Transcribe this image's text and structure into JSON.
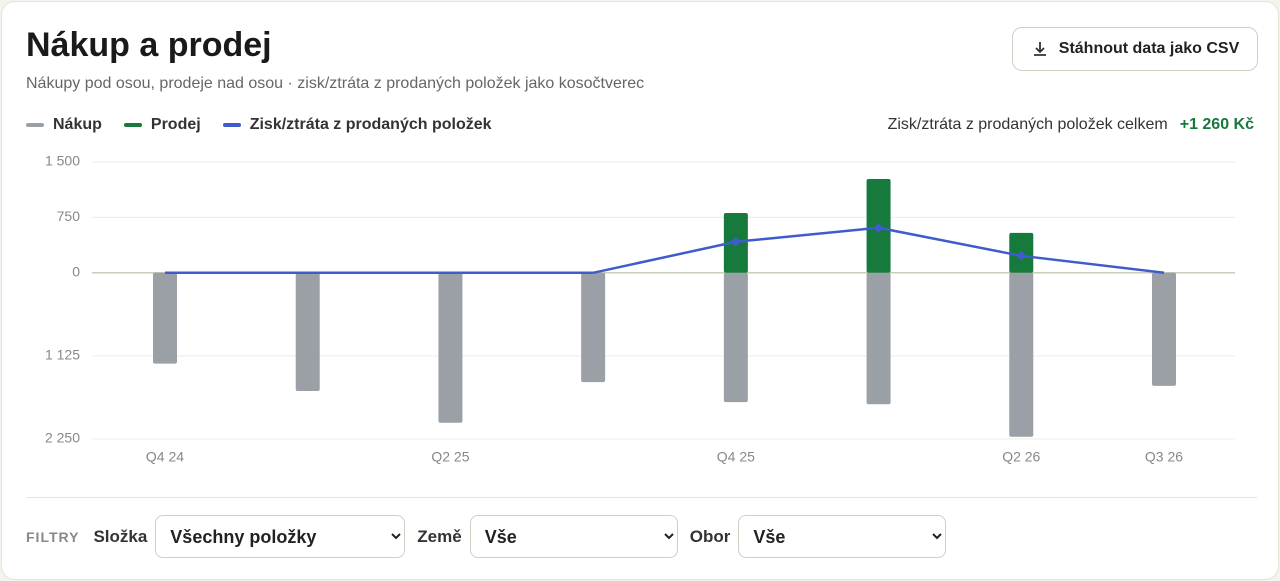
{
  "chart_data": {
    "type": "bar",
    "title": "Nákup a prodej",
    "subtitle": "Nákupy pod osou, prodeje nad osou · zisk/ztráta z prodaných položek jako kosočtverec",
    "summary": {
      "label": "Zisk/ztráta z prodaných položek celkem",
      "value_label": "+1 260 Kč"
    },
    "categories": [
      "Q4 24",
      null,
      "Q2 25",
      null,
      "Q4 25",
      null,
      "Q2 26",
      "Q3 26"
    ],
    "series": [
      {
        "name": "Nákup",
        "color": "#9aa0a6",
        "values": [
          -1230,
          -1600,
          -2030,
          -1480,
          -1750,
          -1780,
          -2220,
          -1530
        ]
      },
      {
        "name": "Prodej",
        "color": "#157a3c",
        "values": [
          0,
          0,
          0,
          0,
          810,
          1270,
          540,
          0
        ]
      },
      {
        "name": "Zisk/ztráta z prodaných položek",
        "color": "#3f5bcc",
        "type": "line",
        "values": [
          0,
          0,
          0,
          0,
          420,
          610,
          230,
          0
        ]
      }
    ],
    "ylim": [
      -2250,
      1500
    ],
    "yticks": [
      {
        "value": 1500,
        "label": "1 500"
      },
      750,
      0,
      {
        "value": -1125,
        "label": "1 125"
      },
      {
        "value": -2250,
        "label": "2 250"
      }
    ],
    "grid": true
  },
  "ui": {
    "download": "Stáhnout data jako CSV",
    "filters_label": "FILTRY",
    "filters": [
      {
        "label": "Složka",
        "value": "Všechny položky"
      },
      {
        "label": "Země",
        "value": "Vše"
      },
      {
        "label": "Obor",
        "value": "Vše"
      }
    ]
  }
}
